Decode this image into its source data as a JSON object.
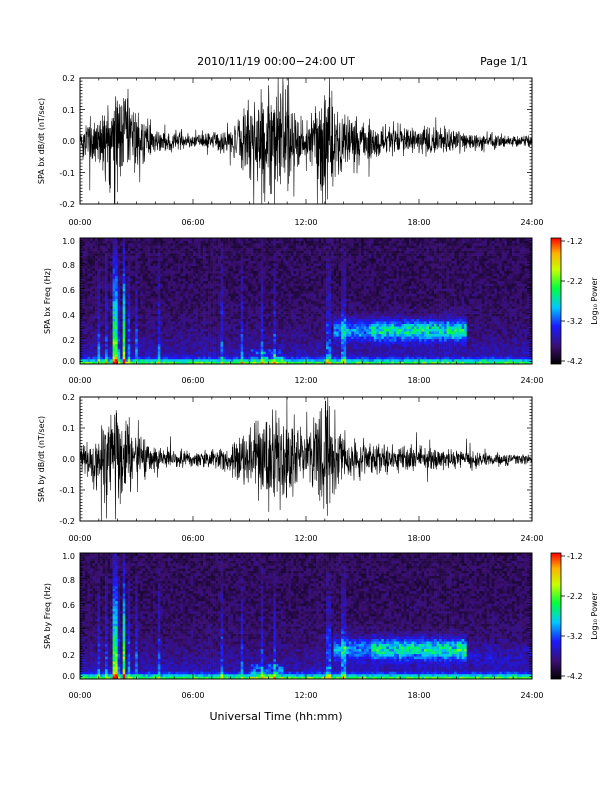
{
  "header": {
    "date_range": "2010/11/19   00:00−24:00 UT",
    "page": "Page 1/1"
  },
  "footer": {
    "xlabel": "Universal Time (hh:mm)"
  },
  "colorbar": {
    "label": "Log₁₀ Power",
    "ticks": [
      "-1.2",
      "-2.2",
      "-3.2",
      "-4.2"
    ],
    "range": [
      -4.2,
      -1.2
    ],
    "colors": [
      "#000000",
      "#3b0f70",
      "#1a1aff",
      "#00c8ff",
      "#00ff40",
      "#c8ff00",
      "#ffb000",
      "#ff0000"
    ]
  },
  "chart_data": [
    {
      "type": "line",
      "id": "bx-wave",
      "ylabel": "SPA bx dB/dt (nT/sec)",
      "x_ticks": [
        "00:00",
        "06:00",
        "12:00",
        "18:00",
        "24:00"
      ],
      "y_ticks": [
        "0.2",
        "0.1",
        "0.0",
        "-0.1",
        "-0.2"
      ],
      "xlim": [
        0,
        24
      ],
      "ylim": [
        -0.2,
        0.2
      ],
      "x": [
        0,
        1,
        2,
        3,
        4,
        5,
        6,
        7,
        8,
        9,
        10,
        11,
        12,
        13,
        14,
        15,
        16,
        17,
        18,
        19,
        20,
        21,
        22,
        23,
        24
      ],
      "envelope": [
        0.05,
        0.1,
        0.2,
        0.1,
        0.04,
        0.03,
        0.025,
        0.03,
        0.04,
        0.12,
        0.2,
        0.2,
        0.06,
        0.2,
        0.08,
        0.07,
        0.06,
        0.05,
        0.04,
        0.045,
        0.04,
        0.03,
        0.025,
        0.02,
        0.015
      ]
    },
    {
      "type": "heatmap",
      "id": "bx-spec",
      "ylabel": "SPA bx Freq (Hz)",
      "x_ticks": [
        "00:00",
        "06:00",
        "12:00",
        "18:00",
        "24:00"
      ],
      "y_ticks": [
        "1.0",
        "0.8",
        "0.6",
        "0.4",
        "0.2",
        "0.0"
      ],
      "xlim": [
        0,
        24
      ],
      "ylim": [
        0,
        1
      ],
      "color_range": [
        -4.2,
        -1.2
      ]
    },
    {
      "type": "line",
      "id": "by-wave",
      "ylabel": "SPA by dB/dt (nT/sec)",
      "x_ticks": [
        "00:00",
        "06:00",
        "12:00",
        "18:00",
        "24:00"
      ],
      "y_ticks": [
        "0.2",
        "0.1",
        "0.0",
        "-0.1",
        "-0.2"
      ],
      "xlim": [
        0,
        24
      ],
      "ylim": [
        -0.2,
        0.2
      ],
      "x": [
        0,
        1,
        2,
        3,
        4,
        5,
        6,
        7,
        8,
        9,
        10,
        11,
        12,
        13,
        14,
        15,
        16,
        17,
        18,
        19,
        20,
        21,
        22,
        23,
        24
      ],
      "envelope": [
        0.05,
        0.1,
        0.2,
        0.08,
        0.04,
        0.03,
        0.025,
        0.03,
        0.05,
        0.1,
        0.16,
        0.15,
        0.08,
        0.2,
        0.07,
        0.06,
        0.05,
        0.045,
        0.04,
        0.035,
        0.03,
        0.025,
        0.02,
        0.018,
        0.015
      ]
    },
    {
      "type": "heatmap",
      "id": "by-spec",
      "ylabel": "SPA by Freq (Hz)",
      "x_ticks": [
        "00:00",
        "06:00",
        "12:00",
        "18:00",
        "24:00"
      ],
      "y_ticks": [
        "1.0",
        "0.8",
        "0.6",
        "0.4",
        "0.2",
        "0.0"
      ],
      "xlim": [
        0,
        24
      ],
      "ylim": [
        0,
        1
      ],
      "color_range": [
        -4.2,
        -1.2
      ]
    }
  ]
}
